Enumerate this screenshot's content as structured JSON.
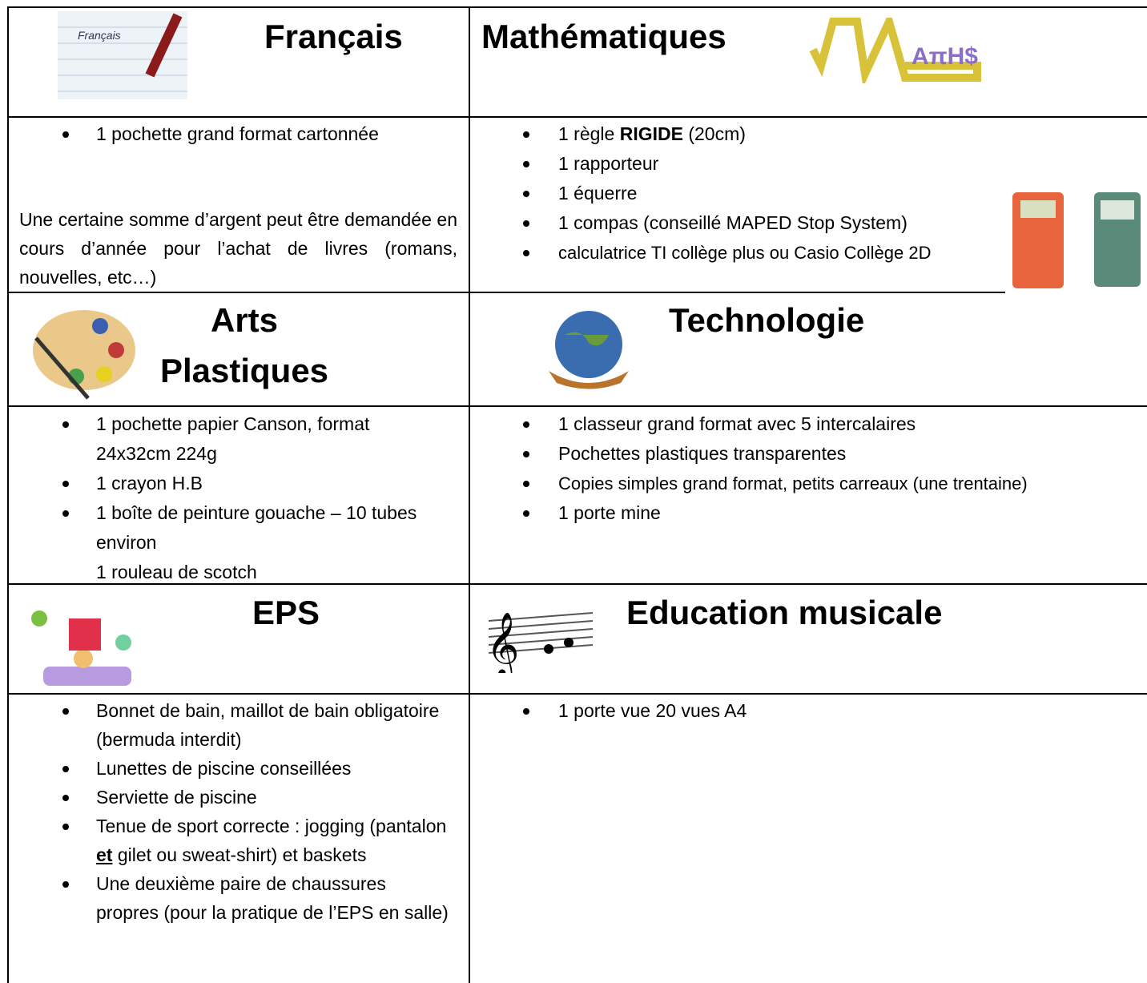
{
  "sections": [
    {
      "left": {
        "title": "Français",
        "items": [
          "1 pochette grand format cartonnée"
        ],
        "note": "Une certaine somme d’argent peut être demandée en cours d’année pour l’achat de livres (romans, nouvelles, etc…)"
      },
      "right": {
        "title": "Mathématiques",
        "items": [
          [
            "1 règle ",
            "RIGIDE",
            " (20cm)"
          ],
          "1 rapporteur",
          "1 équerre",
          "1 compas (conseillé MAPED Stop System)",
          "calculatrice TI collège plus ou Casio Collège 2D"
        ]
      }
    },
    {
      "left": {
        "title": "Arts Plastiques",
        "items": [
          "1 pochette papier Canson, format 24x32cm 224g",
          "1 crayon H.B",
          "1 boîte de peinture gouache – 10 tubes environ"
        ],
        "extra": "1 rouleau de scotch"
      },
      "right": {
        "title": "Technologie",
        "items": [
          "1 classeur grand format avec 5 intercalaires",
          "Pochettes plastiques transparentes",
          "Copies simples grand format, petits carreaux (une trentaine)",
          "1 porte mine"
        ]
      }
    },
    {
      "left": {
        "title": "EPS",
        "items": [
          "Bonnet de bain, maillot de bain obligatoire (bermuda  interdit)",
          "Lunettes de piscine conseillées",
          "Serviette de piscine",
          [
            "Tenue de sport correcte : jogging (pantalon ",
            "et",
            " gilet ou sweat-shirt) et baskets"
          ],
          "Une deuxième paire de chaussures propres (pour la pratique de l’EPS en salle)"
        ]
      },
      "right": {
        "title": "Education musicale",
        "items": [
          "1 porte vue 20 vues A4"
        ]
      }
    }
  ]
}
